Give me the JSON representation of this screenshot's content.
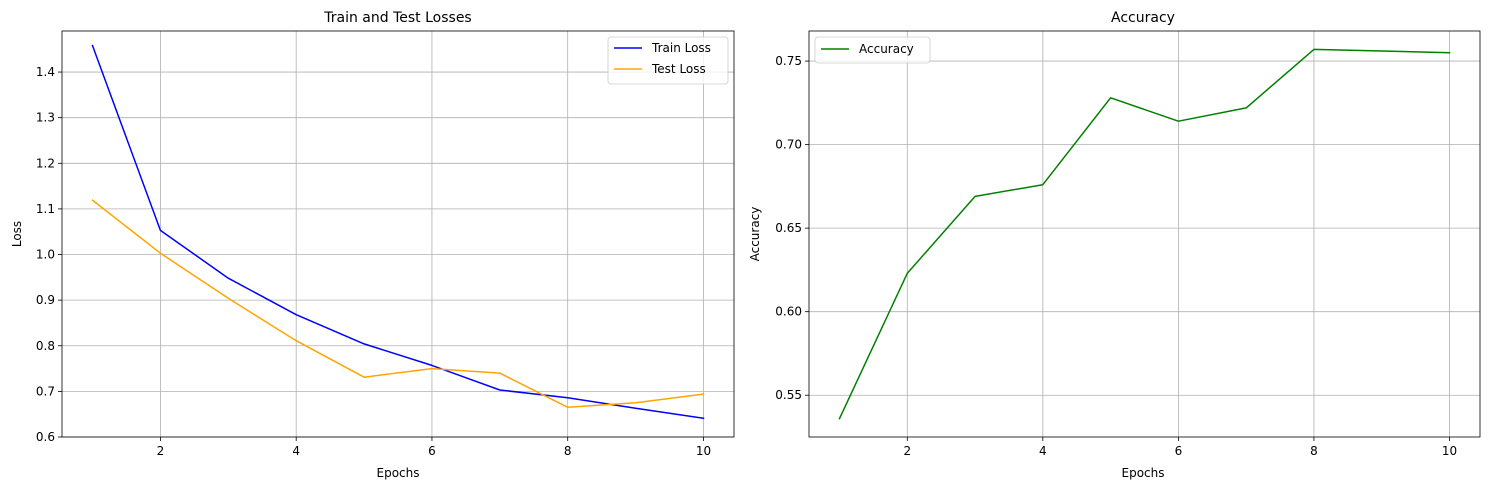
{
  "chart_data": [
    {
      "type": "line",
      "title": "Train and Test Losses",
      "xlabel": "Epochs",
      "ylabel": "Loss",
      "x": [
        1,
        2,
        3,
        4,
        5,
        6,
        7,
        8,
        9,
        10
      ],
      "xlim": [
        0.55,
        10.45
      ],
      "ylim": [
        0.6,
        1.49
      ],
      "xticks": [
        2,
        4,
        6,
        8,
        10
      ],
      "yticks": [
        0.6,
        0.7,
        0.8,
        0.9,
        1.0,
        1.1,
        1.2,
        1.3,
        1.4
      ],
      "ytick_labels": [
        "0.6",
        "0.7",
        "0.8",
        "0.9",
        "1.0",
        "1.1",
        "1.2",
        "1.3",
        "1.4"
      ],
      "grid": true,
      "legend": "top-right",
      "series": [
        {
          "name": "Train Loss",
          "color": "#0000ff",
          "values": [
            1.458,
            1.053,
            0.948,
            0.868,
            0.804,
            0.757,
            0.703,
            0.686,
            0.663,
            0.641
          ]
        },
        {
          "name": "Test Loss",
          "color": "#ffa500",
          "values": [
            1.119,
            1.003,
            0.904,
            0.811,
            0.731,
            0.75,
            0.74,
            0.665,
            0.675,
            0.694
          ]
        }
      ]
    },
    {
      "type": "line",
      "title": "Accuracy",
      "xlabel": "Epochs",
      "ylabel": "Accuracy",
      "x": [
        1,
        2,
        3,
        4,
        5,
        6,
        7,
        8,
        9,
        10
      ],
      "xlim": [
        0.55,
        10.45
      ],
      "ylim": [
        0.525,
        0.768
      ],
      "xticks": [
        2,
        4,
        6,
        8,
        10
      ],
      "yticks": [
        0.55,
        0.6,
        0.65,
        0.7,
        0.75
      ],
      "ytick_labels": [
        "0.55",
        "0.60",
        "0.65",
        "0.70",
        "0.75"
      ],
      "grid": true,
      "legend": "top-left",
      "series": [
        {
          "name": "Accuracy",
          "color": "#008000",
          "values": [
            0.536,
            0.623,
            0.669,
            0.676,
            0.728,
            0.714,
            0.722,
            0.757,
            0.756,
            0.755
          ]
        }
      ]
    }
  ]
}
